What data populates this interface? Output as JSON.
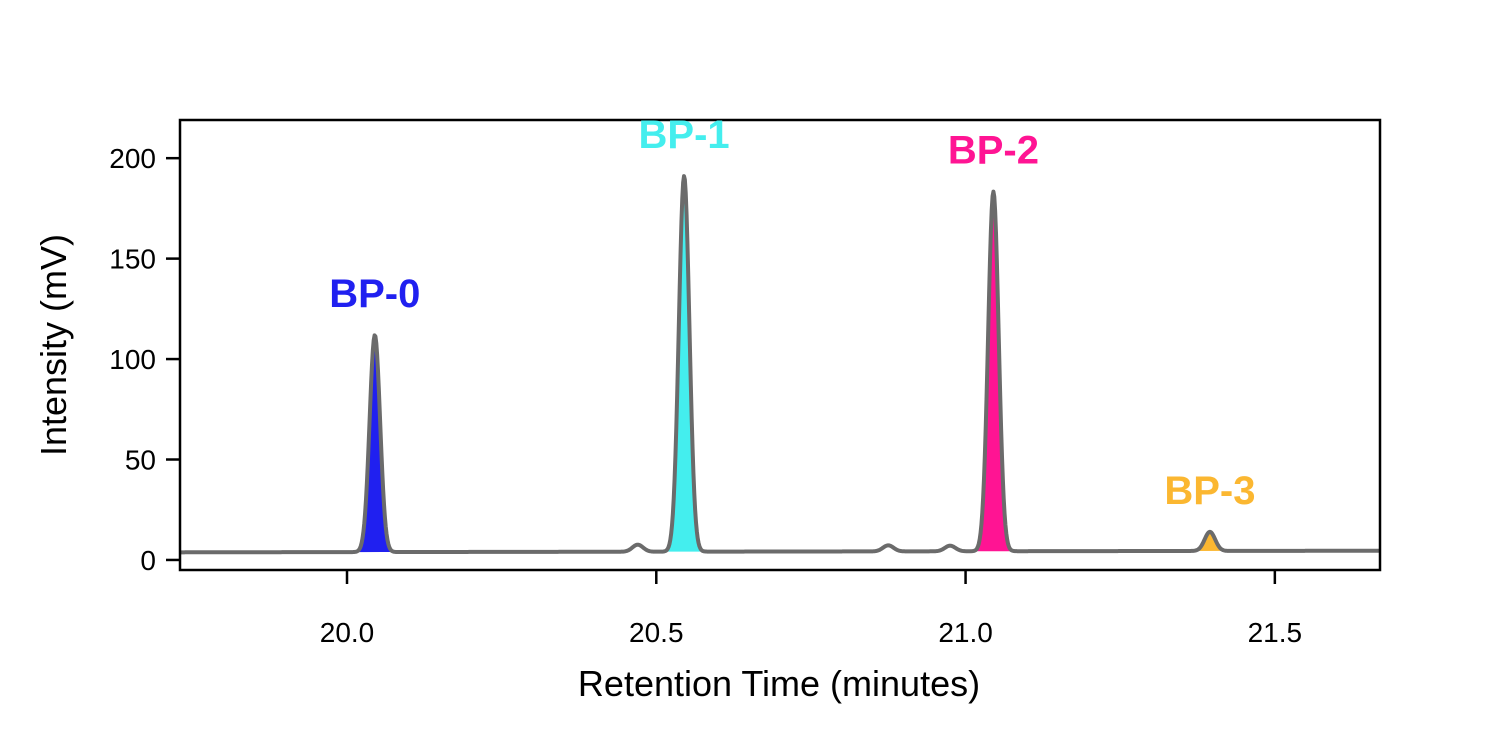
{
  "chart_data": {
    "type": "line",
    "title": "",
    "xlabel": "Retention Time (minutes)",
    "ylabel": "Intensity (mV)",
    "xlim": [
      19.73,
      21.67
    ],
    "ylim": [
      -5,
      219
    ],
    "xticks": [
      20.0,
      20.5,
      21.0,
      21.5
    ],
    "xtick_labels": [
      "20.0",
      "20.5",
      "21.0",
      "21.5"
    ],
    "yticks": [
      0,
      50,
      100,
      150,
      200
    ],
    "ytick_labels": [
      "0",
      "50",
      "100",
      "150",
      "200"
    ],
    "grid": false,
    "legend": "none",
    "trace_color": "#6b6b6b",
    "baseline": {
      "start": 3.8,
      "end": 4.6
    },
    "peaks": [
      {
        "name": "BP-0",
        "rt": 20.045,
        "height": 108,
        "color": "#2020f0",
        "highlighted": true
      },
      {
        "name": "",
        "rt": 20.47,
        "height": 3.5,
        "color": "",
        "highlighted": false
      },
      {
        "name": "BP-1",
        "rt": 20.545,
        "height": 187,
        "color": "#44eeee",
        "highlighted": true
      },
      {
        "name": "",
        "rt": 20.875,
        "height": 3,
        "color": "",
        "highlighted": false
      },
      {
        "name": "",
        "rt": 20.975,
        "height": 2.8,
        "color": "",
        "highlighted": false
      },
      {
        "name": "BP-2",
        "rt": 21.045,
        "height": 179,
        "color": "#ff1493",
        "highlighted": true
      },
      {
        "name": "BP-3",
        "rt": 21.395,
        "height": 9.5,
        "color": "#fbb731",
        "highlighted": true
      }
    ]
  }
}
